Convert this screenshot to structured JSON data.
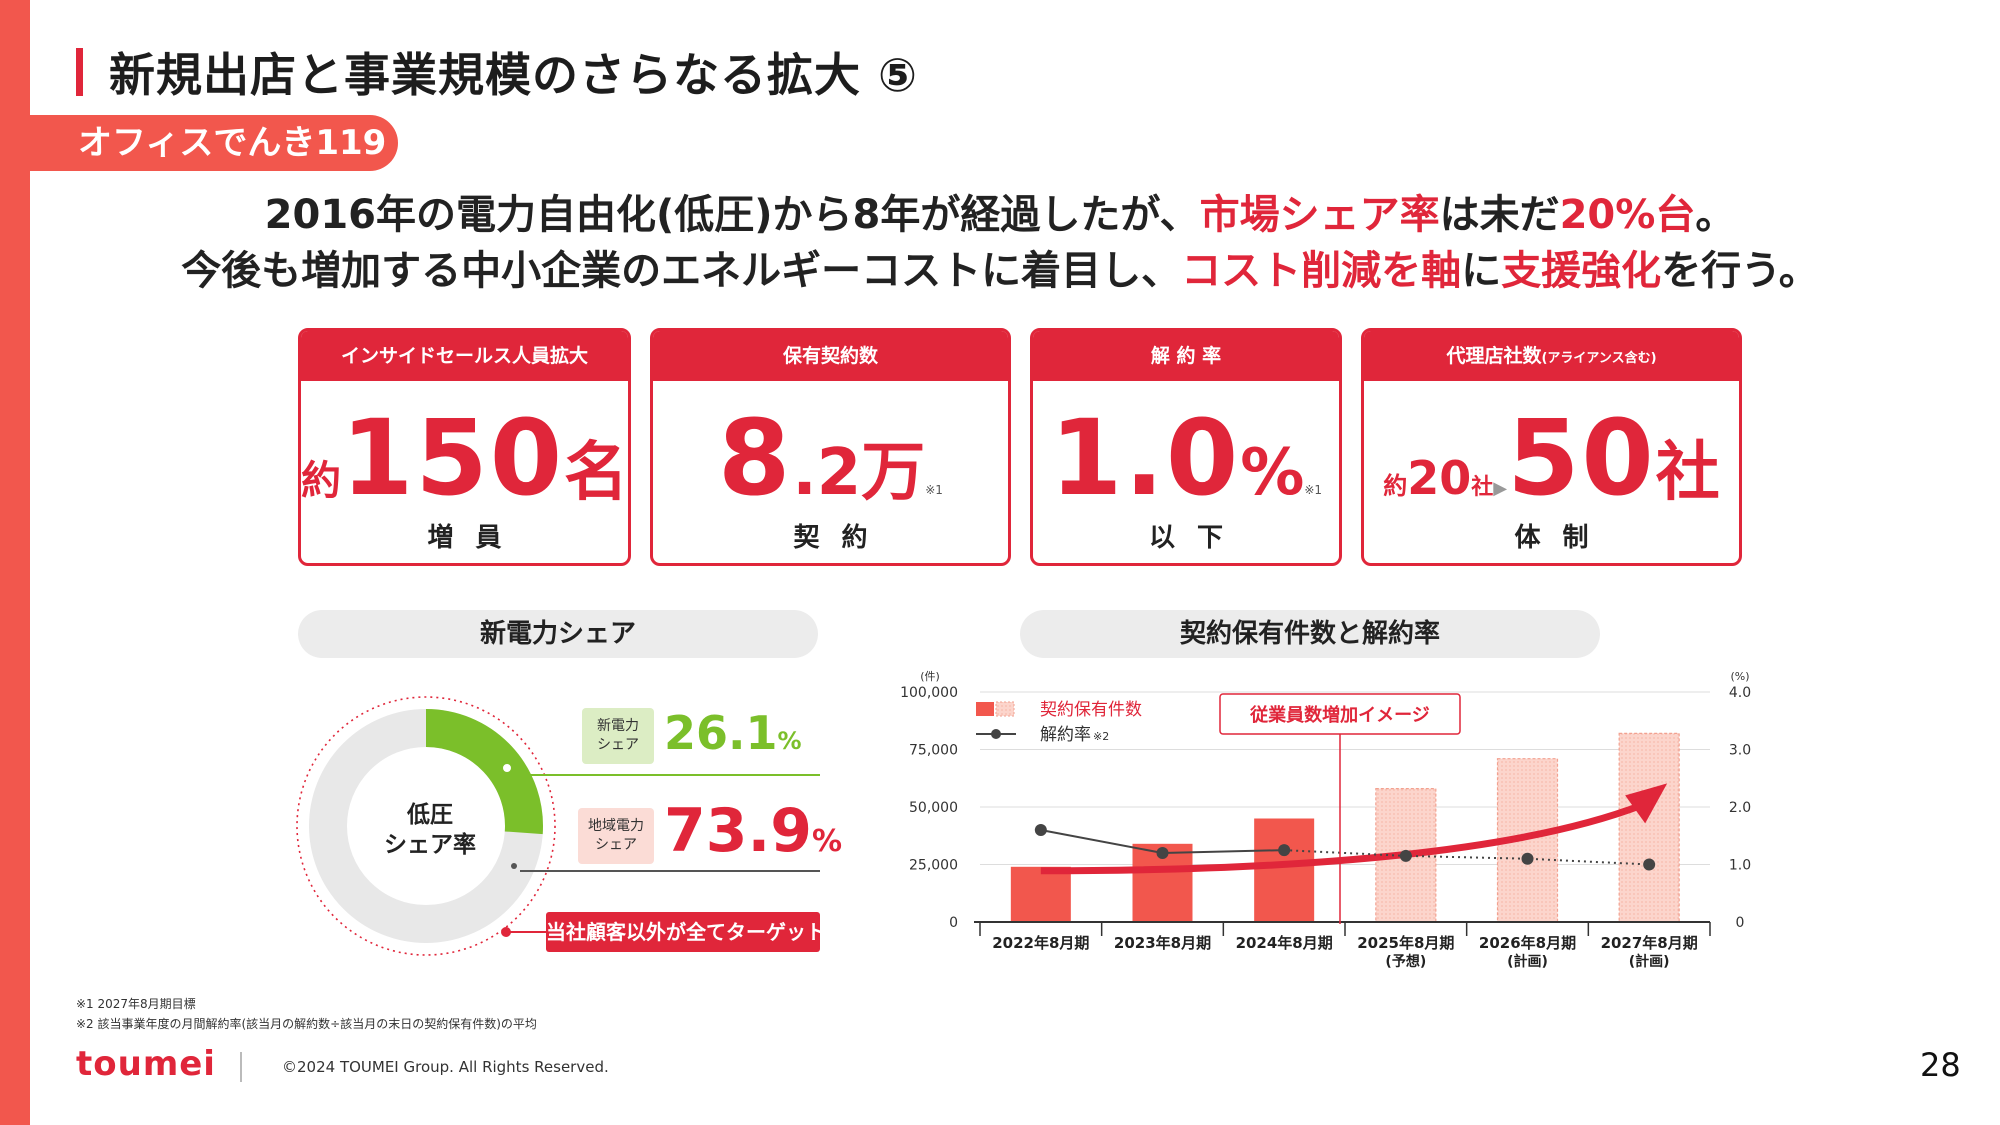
{
  "title": "新規出店と事業規模のさらなる拡大 ⑤",
  "section_label": "オフィスでんき119",
  "headline": {
    "l1_a": "2016年の電力自由化(低圧)から8年が経過したが、",
    "l1_hl1": "市場シェア率",
    "l1_b": "は未だ",
    "l1_hl2": "20%台",
    "l1_c": "。",
    "l2_a": "今後も増加する中小企業のエネルギーコストに着目し、",
    "l2_hl1": "コスト削減を軸",
    "l2_b": "に",
    "l2_hl2": "支援強化",
    "l2_c": "を行う。"
  },
  "kpis": [
    {
      "title": "インサイドセールス人員拡大",
      "prefix": "約",
      "value": "150",
      "unit": "名",
      "sub": "増員"
    },
    {
      "title": "保有契約数",
      "value_main": "8",
      "value_dec": ".2",
      "unit": "万",
      "note": "※1",
      "sub": "契約"
    },
    {
      "title": "解 約 率",
      "value": "1.0",
      "unit": "%",
      "note": "※1",
      "sub": "以下"
    },
    {
      "title": "代理店社数",
      "title_small": "(アライアンス含む)",
      "prefix": "約",
      "from_value": "20",
      "from_unit": "社",
      "arrow": "▶",
      "value": "50",
      "unit": "社",
      "sub": "体制"
    }
  ],
  "share": {
    "title": "新電力シェア",
    "center_label_1": "低圧",
    "center_label_2": "シェア率",
    "new_tag_1": "新電力",
    "new_tag_2": "シェア",
    "new_value": "26.1",
    "regional_tag_1": "地域電力",
    "regional_tag_2": "シェア",
    "regional_value": "73.9",
    "unit": "%",
    "target_label": "当社顧客以外が全てターゲット",
    "colors": {
      "new": "#7bbf2a",
      "regional": "#e8e8e8",
      "ring": "#e0263a"
    }
  },
  "contracts_title": "契約保有件数と解約率",
  "chart_data": [
    {
      "type": "pie",
      "categories": [
        "新電力シェア",
        "地域電力シェア"
      ],
      "values": [
        26.1,
        73.9
      ],
      "title": "新電力シェア"
    },
    {
      "type": "bar",
      "title": "契約保有件数と解約率",
      "categories": [
        "2022年8月期",
        "2023年8月期",
        "2024年8月期",
        "2025年8月期",
        "2026年8月期",
        "2027年8月期"
      ],
      "category_notes": [
        "",
        "",
        "",
        "(予想)",
        "(計画)",
        "(計画)"
      ],
      "series": [
        {
          "name": "契約保有件数",
          "axis": "left",
          "values": [
            24000,
            34000,
            45000,
            58000,
            71000,
            82000
          ],
          "projected_from": 3
        },
        {
          "name": "解約率",
          "name_note": "※2",
          "type": "line",
          "axis": "right",
          "values": [
            1.6,
            1.2,
            1.25,
            1.15,
            1.1,
            1.0
          ]
        }
      ],
      "ylabel_left": "(件)",
      "ylabel_right": "(%)",
      "ylim_left": [
        0,
        100000
      ],
      "ylim_right": [
        0,
        4.0
      ],
      "yticks_left": [
        "100,000",
        "75,000",
        "50,000",
        "25,000",
        "0"
      ],
      "yticks_right": [
        "4.0",
        "3.0",
        "2.0",
        "1.0",
        "0"
      ],
      "annotation": "従業員数増加イメージ",
      "legend_position": "top-left",
      "grid": true,
      "colors": {
        "bar": "#f2574d",
        "bar_projected": "#fcd5cc",
        "line": "#444444",
        "arrow": "#e0263a"
      }
    }
  ],
  "footnotes": [
    "※1  2027年8月期目標",
    "※2  該当事業年度の月間解約率(該当月の解約数÷該当月の末日の契約保有件数)の平均"
  ],
  "footer": {
    "logo": "toumei",
    "copyright": "©2024 TOUMEI Group. All Rights Reserved.",
    "page_number": "28"
  }
}
